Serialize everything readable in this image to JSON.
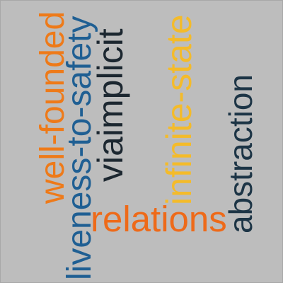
{
  "words": [
    {
      "text": "well-founded",
      "color": "#ee7a19"
    },
    {
      "text": "liveness-to-safety",
      "color": "#1f5f93"
    },
    {
      "text": "viaimplicit",
      "color": "#1c2730"
    },
    {
      "text": "infinite-state",
      "color": "#f4bb2a"
    },
    {
      "text": "relations",
      "color": "#ee6a19"
    },
    {
      "text": "abstraction",
      "color": "#1d3546"
    }
  ],
  "background_color": "#bdbdbd"
}
